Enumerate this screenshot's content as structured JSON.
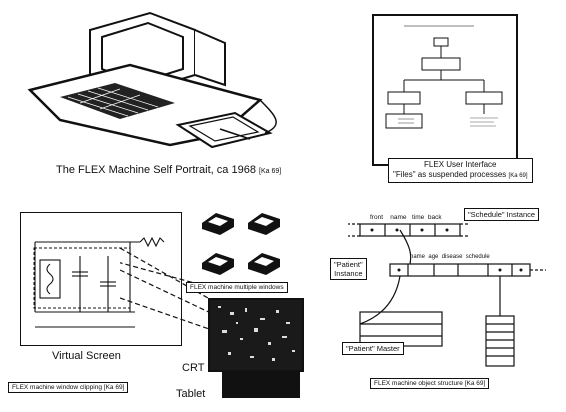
{
  "panels": {
    "self_portrait": {
      "caption": "The FLEX Machine Self Portrait, ca 1968",
      "cite": "[Ka 69]"
    },
    "user_interface": {
      "title": "FLEX User Interface",
      "subtitle": "\"Files\" as suspended processes",
      "cite": "[Ka 69]"
    },
    "window_clipping": {
      "screen_label": "Virtual  Screen",
      "caption": "FLEX machine window clipping",
      "cite": "[Ka 69]",
      "crt_label": "CRT",
      "tablet_label": "Tablet",
      "multi_windows_label": "FLEX machine multiple windows"
    },
    "object_structure": {
      "schedule_instance": "\"Schedule\" Instance",
      "schedule_fields": [
        "front",
        "name",
        "time",
        "back"
      ],
      "patient_instance_line1": "\"Patient\"",
      "patient_instance_line2": "Instance",
      "patient_fields": [
        "name",
        "age",
        "disease",
        "schedule"
      ],
      "patient_master": "\"Patient\" Master",
      "caption": "FLEX machine object structure",
      "cite": "[Ka 69]"
    }
  }
}
